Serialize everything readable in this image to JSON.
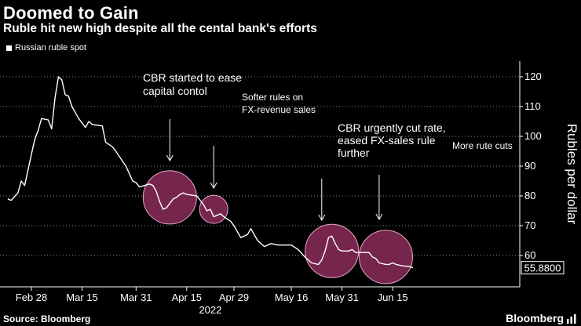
{
  "title": "Doomed to Gain",
  "subtitle": "Ruble hit new high despite all the cental bank's efforts",
  "legend": {
    "series_name": "Russian ruble spot",
    "color": "#ffffff"
  },
  "source": "Source: Bloomberg",
  "brand": "Bloomberg",
  "chart_data": {
    "type": "line",
    "title": "Doomed to Gain",
    "subtitle": "Ruble hit new high despite all the cental bank's efforts",
    "ylabel": "Rubles per dollar",
    "xlabel": "2022",
    "ylim": [
      52,
      125
    ],
    "yticks": [
      60,
      70,
      80,
      90,
      100,
      110,
      120
    ],
    "y_axis_side": "right",
    "grid": "horizontal dotted",
    "legend_position": "top-left",
    "x_ticks": [
      {
        "label": "Feb 28",
        "date": "2022-02-28"
      },
      {
        "label": "Mar 15",
        "date": "2022-03-15"
      },
      {
        "label": "Mar 31",
        "date": "2022-03-31"
      },
      {
        "label": "Apr 15",
        "date": "2022-04-15"
      },
      {
        "label": "Apr 29",
        "date": "2022-04-29"
      },
      {
        "label": "May 16",
        "date": "2022-05-16"
      },
      {
        "label": "May 31",
        "date": "2022-05-31"
      },
      {
        "label": "Jun 15",
        "date": "2022-06-15"
      }
    ],
    "series": [
      {
        "name": "Russian ruble spot",
        "color": "#ffffff",
        "points": [
          [
            "2022-02-21",
            79.0
          ],
          [
            "2022-02-22",
            78.5
          ],
          [
            "2022-02-24",
            81.0
          ],
          [
            "2022-02-25",
            85.0
          ],
          [
            "2022-02-26",
            83.5
          ],
          [
            "2022-02-28",
            94.0
          ],
          [
            "2022-03-01",
            99.0
          ],
          [
            "2022-03-02",
            102.0
          ],
          [
            "2022-03-03",
            106.0
          ],
          [
            "2022-03-05",
            105.5
          ],
          [
            "2022-03-06",
            102.5
          ],
          [
            "2022-03-07",
            113.0
          ],
          [
            "2022-03-08",
            120.0
          ],
          [
            "2022-03-09",
            119.0
          ],
          [
            "2022-03-10",
            114.0
          ],
          [
            "2022-03-11",
            113.5
          ],
          [
            "2022-03-12",
            110.0
          ],
          [
            "2022-03-14",
            106.0
          ],
          [
            "2022-03-16",
            103.0
          ],
          [
            "2022-03-17",
            105.0
          ],
          [
            "2022-03-18",
            104.0
          ],
          [
            "2022-03-21",
            103.5
          ],
          [
            "2022-03-22",
            98.0
          ],
          [
            "2022-03-24",
            96.5
          ],
          [
            "2022-03-25",
            95.0
          ],
          [
            "2022-03-28",
            90.0
          ],
          [
            "2022-03-30",
            85.0
          ],
          [
            "2022-03-31",
            84.5
          ],
          [
            "2022-04-01",
            83.0
          ],
          [
            "2022-04-04",
            84.0
          ],
          [
            "2022-04-05",
            83.5
          ],
          [
            "2022-04-06",
            81.5
          ],
          [
            "2022-04-07",
            78.0
          ],
          [
            "2022-04-08",
            75.5
          ],
          [
            "2022-04-09",
            76.0
          ],
          [
            "2022-04-11",
            79.0
          ],
          [
            "2022-04-12",
            79.5
          ],
          [
            "2022-04-13",
            80.5
          ],
          [
            "2022-04-14",
            81.0
          ],
          [
            "2022-04-15",
            80.5
          ],
          [
            "2022-04-18",
            80.0
          ],
          [
            "2022-04-20",
            77.0
          ],
          [
            "2022-04-21",
            75.0
          ],
          [
            "2022-04-22",
            75.5
          ],
          [
            "2022-04-23",
            73.0
          ],
          [
            "2022-04-25",
            74.0
          ],
          [
            "2022-04-26",
            73.0
          ],
          [
            "2022-04-28",
            71.5
          ],
          [
            "2022-04-29",
            70.0
          ],
          [
            "2022-05-01",
            66.0
          ],
          [
            "2022-05-03",
            67.0
          ],
          [
            "2022-05-04",
            69.0
          ],
          [
            "2022-05-05",
            67.0
          ],
          [
            "2022-05-06",
            65.0
          ],
          [
            "2022-05-08",
            63.0
          ],
          [
            "2022-05-10",
            64.0
          ],
          [
            "2022-05-12",
            63.5
          ],
          [
            "2022-05-16",
            63.5
          ],
          [
            "2022-05-18",
            62.0
          ],
          [
            "2022-05-20",
            59.5
          ],
          [
            "2022-05-22",
            57.5
          ],
          [
            "2022-05-24",
            57.0
          ],
          [
            "2022-05-25",
            58.5
          ],
          [
            "2022-05-26",
            61.5
          ],
          [
            "2022-05-27",
            66.0
          ],
          [
            "2022-05-28",
            66.5
          ],
          [
            "2022-05-29",
            64.0
          ],
          [
            "2022-05-30",
            62.0
          ],
          [
            "2022-05-31",
            61.5
          ],
          [
            "2022-06-02",
            61.5
          ],
          [
            "2022-06-03",
            62.0
          ],
          [
            "2022-06-04",
            61.0
          ],
          [
            "2022-06-06",
            61.0
          ],
          [
            "2022-06-08",
            61.0
          ],
          [
            "2022-06-09",
            59.5
          ],
          [
            "2022-06-10",
            59.0
          ],
          [
            "2022-06-11",
            57.5
          ],
          [
            "2022-06-13",
            57.0
          ],
          [
            "2022-06-14",
            57.0
          ],
          [
            "2022-06-15",
            57.5
          ],
          [
            "2022-06-16",
            57.0
          ],
          [
            "2022-06-18",
            56.5
          ],
          [
            "2022-06-20",
            56.3
          ],
          [
            "2022-06-21",
            55.88
          ]
        ]
      }
    ],
    "last_value_label": "55.8800",
    "highlights": [
      {
        "date": "2022-04-10",
        "value": 79.5,
        "color": "#8b2c5a"
      },
      {
        "date": "2022-04-23",
        "value": 75.5,
        "color": "#8b2c5a"
      },
      {
        "date": "2022-05-28",
        "value": 61.5,
        "color": "#8b2c5a"
      },
      {
        "date": "2022-06-13",
        "value": 59.5,
        "color": "#8b2c5a"
      }
    ],
    "annotations": [
      {
        "lines": [
          "CBR started to ease",
          "capital contol"
        ],
        "arrow_date": "2022-04-10"
      },
      {
        "lines": [
          "Softer rules on",
          "FX-revenue sales"
        ],
        "arrow_date": "2022-04-23"
      },
      {
        "lines": [
          "CBR urgently cut rate,",
          "eased FX-sales rule",
          "further"
        ],
        "arrow_date": "2022-05-25"
      },
      {
        "lines": [
          "More rute cuts"
        ],
        "arrow_date": "2022-06-11"
      }
    ]
  }
}
